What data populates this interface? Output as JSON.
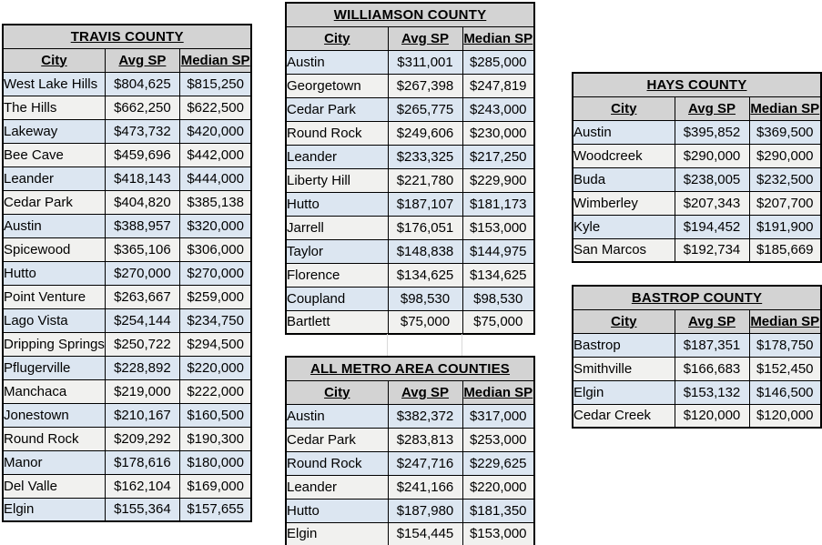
{
  "colors": {
    "title_header_bg": "#d3d3d3",
    "row_blue": "#dce6f1",
    "row_white": "#f1f1ef",
    "border": "#000000",
    "gridline": "#d9d9d9"
  },
  "tables": [
    {
      "key": "travis",
      "title": "TRAVIS COUNTY",
      "columns": [
        "City",
        "Avg SP",
        "Median SP"
      ],
      "rows": [
        [
          "West Lake Hills",
          "$804,625",
          "$815,250"
        ],
        [
          "The Hills",
          "$662,250",
          "$622,500"
        ],
        [
          "Lakeway",
          "$473,732",
          "$420,000"
        ],
        [
          "Bee Cave",
          "$459,696",
          "$442,000"
        ],
        [
          "Leander",
          "$418,143",
          "$444,000"
        ],
        [
          "Cedar Park",
          "$404,820",
          "$385,138"
        ],
        [
          "Austin",
          "$388,957",
          "$320,000"
        ],
        [
          "Spicewood",
          "$365,106",
          "$306,000"
        ],
        [
          "Hutto",
          "$270,000",
          "$270,000"
        ],
        [
          "Point Venture",
          "$263,667",
          "$259,000"
        ],
        [
          "Lago Vista",
          "$254,144",
          "$234,750"
        ],
        [
          "Dripping Springs",
          "$250,722",
          "$294,500"
        ],
        [
          "Pflugerville",
          "$228,892",
          "$220,000"
        ],
        [
          "Manchaca",
          "$219,000",
          "$222,000"
        ],
        [
          "Jonestown",
          "$210,167",
          "$160,500"
        ],
        [
          "Round Rock",
          "$209,292",
          "$190,300"
        ],
        [
          "Manor",
          "$178,616",
          "$180,000"
        ],
        [
          "Del Valle",
          "$162,104",
          "$169,000"
        ],
        [
          "Elgin",
          "$155,364",
          "$157,655"
        ]
      ]
    },
    {
      "key": "williamson",
      "title": "WILLIAMSON COUNTY",
      "columns": [
        "City",
        "Avg SP",
        "Median SP"
      ],
      "rows": [
        [
          "Austin",
          "$311,001",
          "$285,000"
        ],
        [
          "Georgetown",
          "$267,398",
          "$247,819"
        ],
        [
          "Cedar Park",
          "$265,775",
          "$243,000"
        ],
        [
          "Round Rock",
          "$249,606",
          "$230,000"
        ],
        [
          "Leander",
          "$233,325",
          "$217,250"
        ],
        [
          "Liberty Hill",
          "$221,780",
          "$229,900"
        ],
        [
          "Hutto",
          "$187,107",
          "$181,173"
        ],
        [
          "Jarrell",
          "$176,051",
          "$153,000"
        ],
        [
          "Taylor",
          "$148,838",
          "$144,975"
        ],
        [
          "Florence",
          "$134,625",
          "$134,625"
        ],
        [
          "Coupland",
          "$98,530",
          "$98,530"
        ],
        [
          "Bartlett",
          "$75,000",
          "$75,000"
        ]
      ]
    },
    {
      "key": "metro",
      "title": "ALL METRO AREA COUNTIES",
      "columns": [
        "City",
        "Avg SP",
        "Median SP"
      ],
      "rows": [
        [
          "Austin",
          "$382,372",
          "$317,000"
        ],
        [
          "Cedar Park",
          "$283,813",
          "$253,000"
        ],
        [
          "Round Rock",
          "$247,716",
          "$229,625"
        ],
        [
          "Leander",
          "$241,166",
          "$220,000"
        ],
        [
          "Hutto",
          "$187,980",
          "$181,350"
        ],
        [
          "Elgin",
          "$154,445",
          "$153,000"
        ]
      ]
    },
    {
      "key": "hays",
      "title": "HAYS COUNTY",
      "columns": [
        "City",
        "Avg SP",
        "Median SP"
      ],
      "rows": [
        [
          "Austin",
          "$395,852",
          "$369,500"
        ],
        [
          "Woodcreek",
          "$290,000",
          "$290,000"
        ],
        [
          "Buda",
          "$238,005",
          "$232,500"
        ],
        [
          "Wimberley",
          "$207,343",
          "$207,700"
        ],
        [
          "Kyle",
          "$194,452",
          "$191,900"
        ],
        [
          "San Marcos",
          "$192,734",
          "$185,669"
        ]
      ]
    },
    {
      "key": "bastrop",
      "title": "BASTROP COUNTY",
      "columns": [
        "City",
        "Avg SP",
        "Median SP"
      ],
      "rows": [
        [
          "Bastrop",
          "$187,351",
          "$178,750"
        ],
        [
          "Smithville",
          "$166,683",
          "$152,450"
        ],
        [
          "Elgin",
          "$153,132",
          "$146,500"
        ],
        [
          "Cedar Creek",
          "$120,000",
          "$120,000"
        ]
      ]
    }
  ]
}
